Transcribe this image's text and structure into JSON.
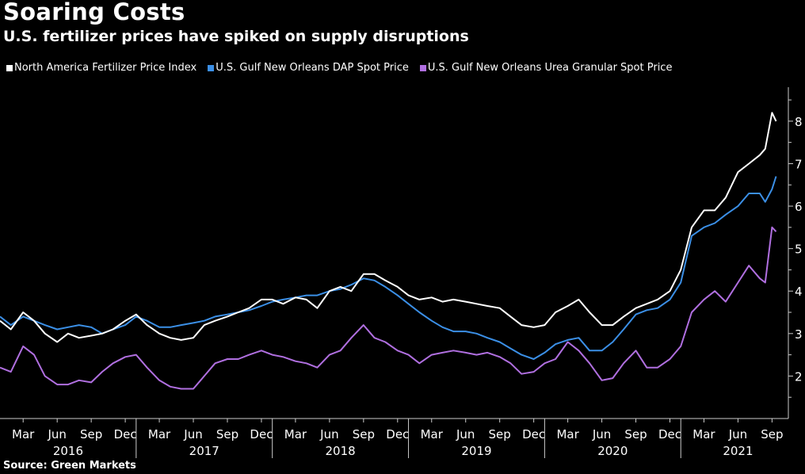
{
  "header": {
    "title": "Soaring Costs",
    "subtitle": "U.S. fertilizer prices have spiked on supply disruptions"
  },
  "footer": {
    "source": "Source: Green Markets"
  },
  "chart_data": {
    "type": "line",
    "title": "Soaring Costs",
    "subtitle": "U.S. fertilizer prices have spiked on supply disruptions",
    "xlabel": "",
    "ylabel": "",
    "x_range": [
      2016.0,
      2021.75
    ],
    "ylim": [
      1.0,
      8.8
    ],
    "y_ticks": [
      2,
      3,
      4,
      5,
      6,
      7,
      8
    ],
    "y_tick_labels": [
      "2",
      "3",
      "4",
      "5",
      "6",
      "7",
      "8"
    ],
    "y_axis_side": "right",
    "grid": false,
    "legend_position": "top",
    "x_ticks": [
      {
        "x": 2016.17,
        "label": "Mar"
      },
      {
        "x": 2016.42,
        "label": "Jun"
      },
      {
        "x": 2016.67,
        "label": "Sep"
      },
      {
        "x": 2016.92,
        "label": "Dec"
      },
      {
        "x": 2017.17,
        "label": "Mar"
      },
      {
        "x": 2017.42,
        "label": "Jun"
      },
      {
        "x": 2017.67,
        "label": "Sep"
      },
      {
        "x": 2017.92,
        "label": "Dec"
      },
      {
        "x": 2018.17,
        "label": "Mar"
      },
      {
        "x": 2018.42,
        "label": "Jun"
      },
      {
        "x": 2018.67,
        "label": "Sep"
      },
      {
        "x": 2018.92,
        "label": "Dec"
      },
      {
        "x": 2019.17,
        "label": "Mar"
      },
      {
        "x": 2019.42,
        "label": "Jun"
      },
      {
        "x": 2019.67,
        "label": "Sep"
      },
      {
        "x": 2019.92,
        "label": "Dec"
      },
      {
        "x": 2020.17,
        "label": "Mar"
      },
      {
        "x": 2020.42,
        "label": "Jun"
      },
      {
        "x": 2020.67,
        "label": "Sep"
      },
      {
        "x": 2020.92,
        "label": "Dec"
      },
      {
        "x": 2021.17,
        "label": "Mar"
      },
      {
        "x": 2021.42,
        "label": "Jun"
      },
      {
        "x": 2021.67,
        "label": "Sep"
      }
    ],
    "year_labels": [
      {
        "x": 2016.5,
        "label": "2016"
      },
      {
        "x": 2017.5,
        "label": "2017"
      },
      {
        "x": 2018.5,
        "label": "2018"
      },
      {
        "x": 2019.5,
        "label": "2019"
      },
      {
        "x": 2020.5,
        "label": "2020"
      },
      {
        "x": 2021.42,
        "label": "2021"
      }
    ],
    "year_separators": [
      2017.0,
      2018.0,
      2019.0,
      2020.0,
      2021.0
    ],
    "series": [
      {
        "name": "North America Fertilizer Price Index",
        "color": "#ffffff",
        "x": [
          2016.0,
          2016.08,
          2016.17,
          2016.25,
          2016.33,
          2016.42,
          2016.5,
          2016.58,
          2016.67,
          2016.75,
          2016.83,
          2016.92,
          2017.0,
          2017.08,
          2017.17,
          2017.25,
          2017.33,
          2017.42,
          2017.5,
          2017.58,
          2017.67,
          2017.75,
          2017.83,
          2017.92,
          2018.0,
          2018.08,
          2018.17,
          2018.25,
          2018.33,
          2018.42,
          2018.5,
          2018.58,
          2018.67,
          2018.75,
          2018.83,
          2018.92,
          2019.0,
          2019.08,
          2019.17,
          2019.25,
          2019.33,
          2019.42,
          2019.5,
          2019.58,
          2019.67,
          2019.75,
          2019.83,
          2019.92,
          2020.0,
          2020.08,
          2020.17,
          2020.25,
          2020.33,
          2020.42,
          2020.5,
          2020.58,
          2020.67,
          2020.75,
          2020.83,
          2020.92,
          2021.0,
          2021.08,
          2021.17,
          2021.25,
          2021.33,
          2021.42,
          2021.5,
          2021.58,
          2021.62,
          2021.67,
          2021.7
        ],
        "values": [
          3.3,
          3.1,
          3.5,
          3.3,
          3.0,
          2.8,
          3.0,
          2.9,
          2.95,
          3.0,
          3.1,
          3.3,
          3.45,
          3.2,
          3.0,
          2.9,
          2.85,
          2.9,
          3.2,
          3.3,
          3.4,
          3.5,
          3.6,
          3.8,
          3.8,
          3.7,
          3.85,
          3.8,
          3.6,
          4.0,
          4.1,
          4.0,
          4.4,
          4.4,
          4.25,
          4.1,
          3.9,
          3.8,
          3.85,
          3.75,
          3.8,
          3.75,
          3.7,
          3.65,
          3.6,
          3.4,
          3.2,
          3.15,
          3.2,
          3.5,
          3.65,
          3.8,
          3.5,
          3.2,
          3.2,
          3.4,
          3.6,
          3.7,
          3.8,
          4.0,
          4.5,
          5.5,
          5.9,
          5.9,
          6.2,
          6.8,
          7.0,
          7.2,
          7.35,
          8.2,
          8.0
        ]
      },
      {
        "name": "U.S. Gulf New Orleans DAP Spot Price",
        "color": "#3b8fe6",
        "x": [
          2016.0,
          2016.08,
          2016.17,
          2016.25,
          2016.33,
          2016.42,
          2016.5,
          2016.58,
          2016.67,
          2016.75,
          2016.83,
          2016.92,
          2017.0,
          2017.08,
          2017.17,
          2017.25,
          2017.33,
          2017.42,
          2017.5,
          2017.58,
          2017.67,
          2017.75,
          2017.83,
          2017.92,
          2018.0,
          2018.08,
          2018.17,
          2018.25,
          2018.33,
          2018.42,
          2018.5,
          2018.58,
          2018.67,
          2018.75,
          2018.83,
          2018.92,
          2019.0,
          2019.08,
          2019.17,
          2019.25,
          2019.33,
          2019.42,
          2019.5,
          2019.58,
          2019.67,
          2019.75,
          2019.83,
          2019.92,
          2020.0,
          2020.08,
          2020.17,
          2020.25,
          2020.33,
          2020.42,
          2020.5,
          2020.58,
          2020.67,
          2020.75,
          2020.83,
          2020.92,
          2021.0,
          2021.08,
          2021.17,
          2021.25,
          2021.33,
          2021.42,
          2021.5,
          2021.58,
          2021.62,
          2021.67,
          2021.7
        ],
        "values": [
          3.4,
          3.2,
          3.4,
          3.3,
          3.2,
          3.1,
          3.15,
          3.2,
          3.15,
          3.0,
          3.1,
          3.2,
          3.4,
          3.3,
          3.15,
          3.15,
          3.2,
          3.25,
          3.3,
          3.4,
          3.45,
          3.5,
          3.55,
          3.65,
          3.75,
          3.8,
          3.85,
          3.9,
          3.9,
          4.0,
          4.05,
          4.15,
          4.3,
          4.25,
          4.1,
          3.9,
          3.7,
          3.5,
          3.3,
          3.15,
          3.05,
          3.05,
          3.0,
          2.9,
          2.8,
          2.65,
          2.5,
          2.4,
          2.55,
          2.75,
          2.85,
          2.9,
          2.6,
          2.6,
          2.8,
          3.1,
          3.45,
          3.55,
          3.6,
          3.8,
          4.2,
          5.3,
          5.5,
          5.6,
          5.8,
          6.0,
          6.3,
          6.3,
          6.1,
          6.4,
          6.7
        ]
      },
      {
        "name": "U.S. Gulf New Orleans Urea Granular Spot Price",
        "color": "#b06fe0",
        "x": [
          2016.0,
          2016.08,
          2016.17,
          2016.25,
          2016.33,
          2016.42,
          2016.5,
          2016.58,
          2016.67,
          2016.75,
          2016.83,
          2016.92,
          2017.0,
          2017.08,
          2017.17,
          2017.25,
          2017.33,
          2017.42,
          2017.5,
          2017.58,
          2017.67,
          2017.75,
          2017.83,
          2017.92,
          2018.0,
          2018.08,
          2018.17,
          2018.25,
          2018.33,
          2018.42,
          2018.5,
          2018.58,
          2018.67,
          2018.75,
          2018.83,
          2018.92,
          2019.0,
          2019.08,
          2019.17,
          2019.25,
          2019.33,
          2019.42,
          2019.5,
          2019.58,
          2019.67,
          2019.75,
          2019.83,
          2019.92,
          2020.0,
          2020.08,
          2020.17,
          2020.25,
          2020.33,
          2020.42,
          2020.5,
          2020.58,
          2020.67,
          2020.75,
          2020.83,
          2020.92,
          2021.0,
          2021.08,
          2021.17,
          2021.25,
          2021.33,
          2021.42,
          2021.5,
          2021.58,
          2021.62,
          2021.67,
          2021.7
        ],
        "values": [
          2.2,
          2.1,
          2.7,
          2.5,
          2.0,
          1.8,
          1.8,
          1.9,
          1.85,
          2.1,
          2.3,
          2.45,
          2.5,
          2.2,
          1.9,
          1.75,
          1.7,
          1.7,
          2.0,
          2.3,
          2.4,
          2.4,
          2.5,
          2.6,
          2.5,
          2.45,
          2.35,
          2.3,
          2.2,
          2.5,
          2.6,
          2.9,
          3.2,
          2.9,
          2.8,
          2.6,
          2.5,
          2.3,
          2.5,
          2.55,
          2.6,
          2.55,
          2.5,
          2.55,
          2.45,
          2.3,
          2.05,
          2.1,
          2.3,
          2.4,
          2.8,
          2.6,
          2.3,
          1.9,
          1.95,
          2.3,
          2.6,
          2.2,
          2.2,
          2.4,
          2.7,
          3.5,
          3.8,
          4.0,
          3.75,
          4.2,
          4.6,
          4.3,
          4.2,
          5.5,
          5.4
        ]
      }
    ]
  }
}
